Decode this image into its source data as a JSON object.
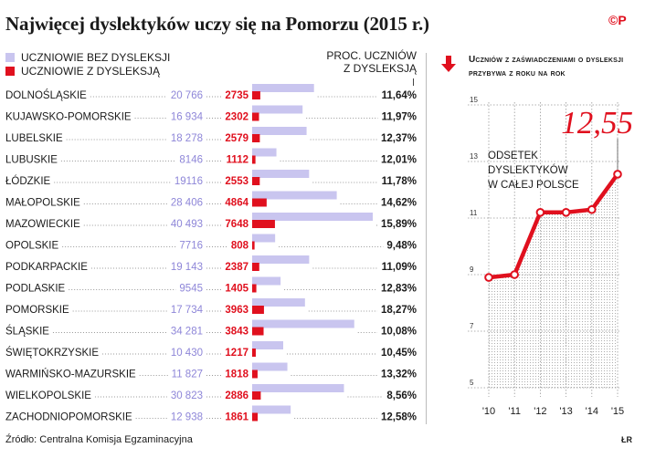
{
  "title": "Najwięcej dyslektyków uczy się na Pomorzu (2015 r.)",
  "logo": "©P",
  "legend": {
    "without": "UCZNIOWIE BEZ DYSLEKSJI",
    "with": "UCZNIOWIE Z DYSLEKSJĄ",
    "percent_header_1": "PROC. UCZNIÓW",
    "percent_header_2": "Z DYSLEKSJĄ"
  },
  "colors": {
    "lavender": "#c9c5ef",
    "lavender_text": "#8e86d8",
    "red": "#e0101e"
  },
  "right_title": "Uczniów z zaświadczeniami o dysleksji przybywa z roku na rok",
  "big_value": "12,55",
  "line_annotation": [
    "ODSETEK",
    "DYSLEKTYKÓW",
    "W CAŁEJ POLSCE"
  ],
  "source": "Źródło: Centralna Komisja Egzaminacyjna",
  "signature": "ŁR",
  "chart_data": [
    {
      "type": "bar",
      "categories": [
        "DOLNOŚLĄSKIE",
        "KUJAWSKO-POMORSKIE",
        "LUBELSKIE",
        "LUBUSKIE",
        "ŁÓDZKIE",
        "MAŁOPOLSKIE",
        "MAZOWIECKIE",
        "OPOLSKIE",
        "PODKARPACKIE",
        "PODLASKIE",
        "POMORSKIE",
        "ŚLĄSKIE",
        "ŚWIĘTOKRZYSKIE",
        "WARMIŃSKO-MAZURSKIE",
        "WIELKOPOLSKIE",
        "ZACHODNIOPOMORSKIE"
      ],
      "series": [
        {
          "name": "UCZNIOWIE BEZ DYSLEKSJI",
          "values": [
            20766,
            16934,
            18278,
            8146,
            19116,
            28406,
            40493,
            7716,
            19143,
            9545,
            17734,
            34281,
            10430,
            11827,
            30823,
            12938
          ],
          "labels": [
            "20 766",
            "16 934",
            "18 278",
            "8146",
            "19116",
            "28 406",
            "40 493",
            "7716",
            "19 143",
            "9545",
            "17 734",
            "34 281",
            "10 430",
            "11 827",
            "30 823",
            "12 938"
          ]
        },
        {
          "name": "UCZNIOWIE Z DYSLEKSJĄ",
          "values": [
            2735,
            2302,
            2579,
            1112,
            2553,
            4864,
            7648,
            808,
            2387,
            1405,
            3963,
            3843,
            1217,
            1818,
            2886,
            1861
          ],
          "labels": [
            "2735",
            "2302",
            "2579",
            "1112",
            "2553",
            "4864",
            "7648",
            "808",
            "2387",
            "1405",
            "3963",
            "3843",
            "1217",
            "1818",
            "2886",
            "1861"
          ]
        }
      ],
      "percent_labels": [
        "11,64%",
        "11,97%",
        "12,37%",
        "12,01%",
        "11,78%",
        "14,62%",
        "15,89%",
        "9,48%",
        "11,09%",
        "12,83%",
        "18,27%",
        "10,08%",
        "10,45%",
        "13,32%",
        "8,56%",
        "12,58%"
      ]
    },
    {
      "type": "line",
      "x": [
        "'10",
        "'11",
        "'12",
        "'13",
        "'14",
        "'15"
      ],
      "y": [
        8.9,
        9.0,
        11.2,
        11.2,
        11.3,
        12.55
      ],
      "ylim": [
        5,
        15
      ],
      "yticks": [
        "5",
        "7",
        "9",
        "11",
        "13",
        "15"
      ]
    }
  ]
}
